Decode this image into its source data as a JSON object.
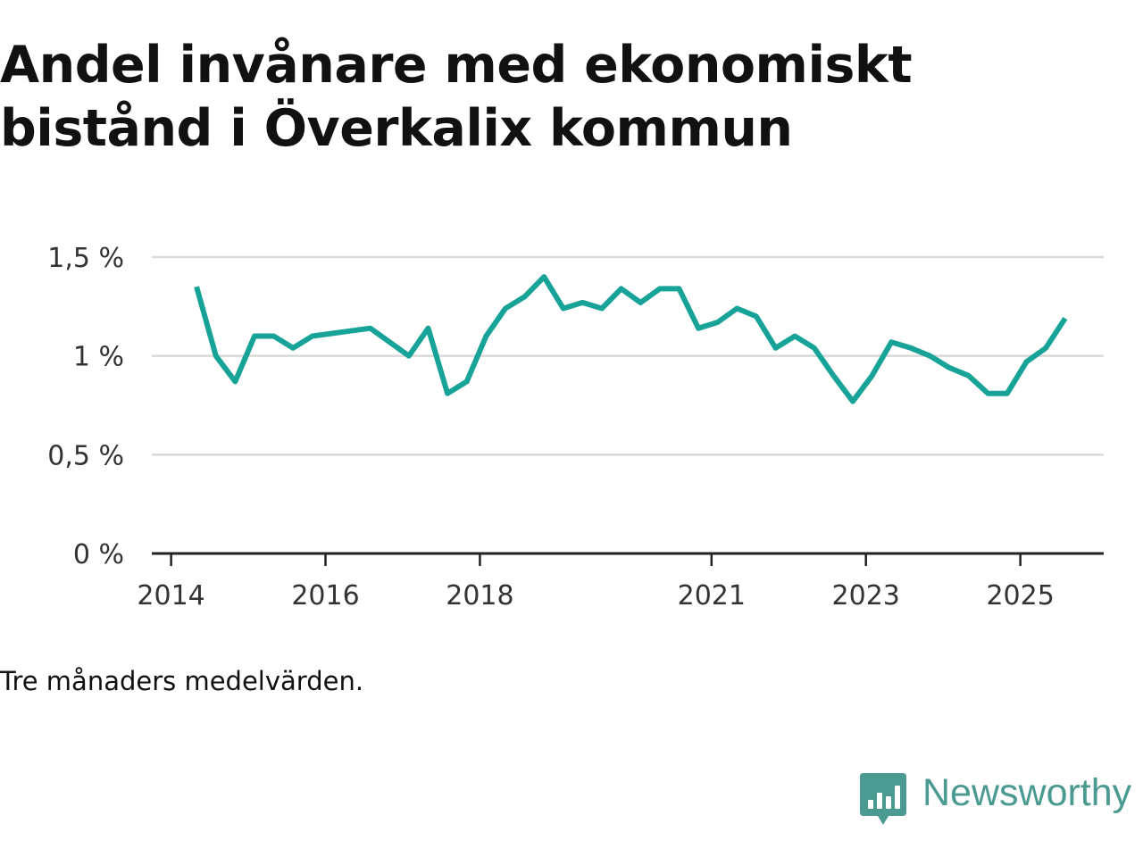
{
  "title_lines": [
    "Andel invånare med ekonomiskt",
    "bistånd i Överkalix kommun"
  ],
  "note": "Tre månaders medelvärden.",
  "brand": "Newsworthy",
  "colors": {
    "line": "#17a398",
    "grid": "#d9d9d9",
    "axis": "#222222",
    "brand": "#4a9a92"
  },
  "chart_data": {
    "type": "line",
    "title": "Andel invånare med ekonomiskt bistånd i Överkalix kommun",
    "xlabel": "",
    "ylabel": "",
    "y_ticks": [
      0,
      0.5,
      1,
      1.5
    ],
    "y_tick_labels": [
      "0 %",
      "0,5 %",
      "1 %",
      "1,5 %"
    ],
    "ylim": [
      0,
      1.5
    ],
    "xlim": [
      2013.75,
      2026.08
    ],
    "x_ticks": [
      2014,
      2016,
      2018,
      2021,
      2023,
      2025
    ],
    "x_tick_labels": [
      "2014",
      "2016",
      "2018",
      "2021",
      "2023",
      "2025"
    ],
    "grid": true,
    "series": [
      {
        "name": "Andel invånare med ekonomiskt bistånd",
        "x": [
          2014.33,
          2014.58,
          2014.83,
          2015.08,
          2015.33,
          2015.58,
          2015.83,
          2016.58,
          2016.83,
          2017.08,
          2017.33,
          2017.58,
          2017.83,
          2018.08,
          2018.33,
          2018.58,
          2018.83,
          2019.08,
          2019.33,
          2019.58,
          2019.83,
          2020.08,
          2020.33,
          2020.58,
          2020.83,
          2021.08,
          2021.33,
          2021.58,
          2021.83,
          2022.08,
          2022.33,
          2022.58,
          2022.83,
          2023.08,
          2023.33,
          2023.58,
          2023.83,
          2024.08,
          2024.33,
          2024.58,
          2024.83,
          2025.08,
          2025.33,
          2025.58
        ],
        "values": [
          1.35,
          1.0,
          0.87,
          1.1,
          1.1,
          1.04,
          1.1,
          1.14,
          1.07,
          1.0,
          1.14,
          0.81,
          0.87,
          1.1,
          1.24,
          1.3,
          1.4,
          1.24,
          1.27,
          1.24,
          1.34,
          1.27,
          1.34,
          1.34,
          1.14,
          1.17,
          1.24,
          1.2,
          1.04,
          1.1,
          1.04,
          0.9,
          0.77,
          0.9,
          1.07,
          1.04,
          1.0,
          0.94,
          0.9,
          0.81,
          0.81,
          0.97,
          1.04,
          1.19
        ]
      }
    ]
  }
}
